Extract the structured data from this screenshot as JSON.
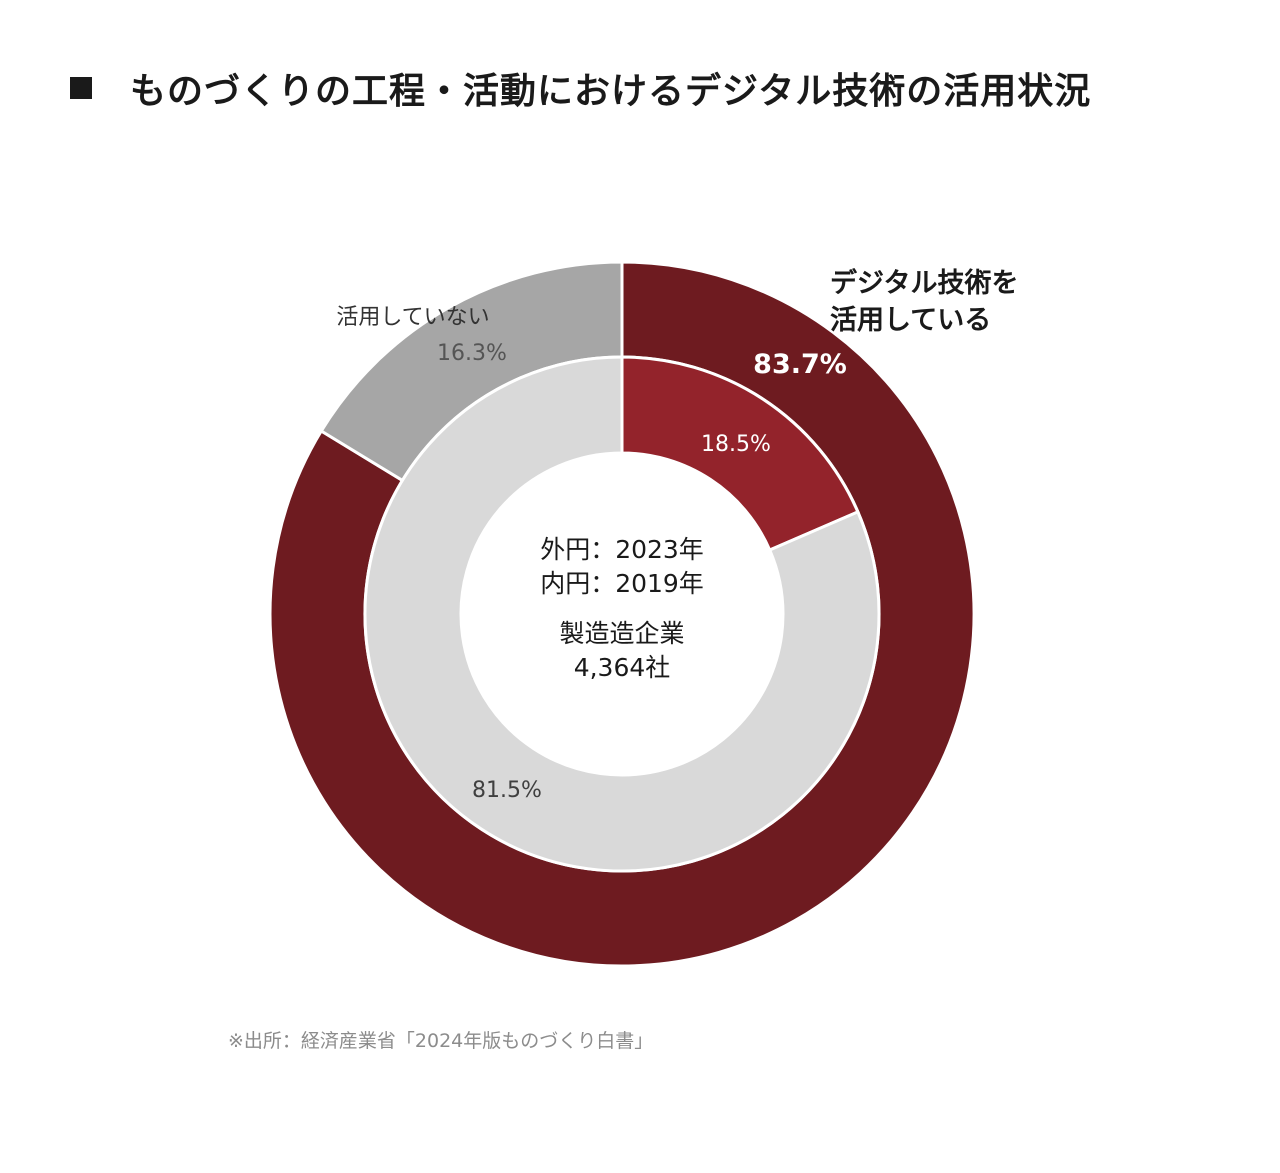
{
  "title": "ものづくりの工程・活動におけるデジタル技術の活用状況",
  "source": "※出所：経済産業省「2024年版ものづくり白書」",
  "colors": {
    "outer_using": "#6e1b20",
    "outer_not_using": "#a6a6a6",
    "inner_using": "#93232b",
    "inner_not_using": "#d9d9d9",
    "text_dark": "#1a1a1a",
    "text_light": "#ffffff"
  },
  "chart_data": {
    "type": "donut",
    "rings": [
      {
        "name": "外円：2023年",
        "slices": [
          {
            "label_lines": [
              "デジタル技術を",
              "活用している"
            ],
            "value": 83.7,
            "value_label": "83.7%",
            "color": "#6e1b20"
          },
          {
            "label_lines": [
              "活用していない"
            ],
            "value": 16.3,
            "value_label": "16.3%",
            "color": "#a6a6a6"
          }
        ]
      },
      {
        "name": "内円：2019年",
        "slices": [
          {
            "value": 18.5,
            "value_label": "18.5%",
            "color": "#93232b"
          },
          {
            "value": 81.5,
            "value_label": "81.5%",
            "color": "#d9d9d9"
          }
        ]
      }
    ],
    "center_text": [
      "外円：2023年",
      "内円：2019年",
      "製造造企業",
      "4,364社"
    ]
  }
}
